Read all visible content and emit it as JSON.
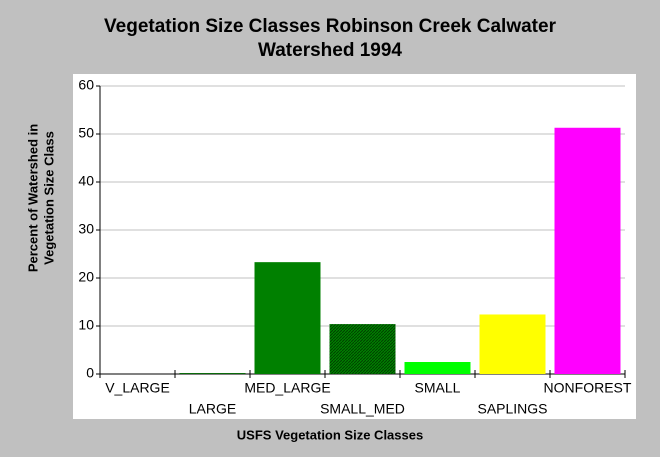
{
  "chart_data": {
    "type": "bar",
    "title": [
      "Vegetation Size Classes Robinson Creek Calwater",
      "Watershed 1994"
    ],
    "x_label": "USFS Vegetation Size Classes",
    "y_label": [
      "Percent of Watershed in",
      "Vegetation Size Class"
    ],
    "categories": [
      "V_LARGE",
      "LARGE",
      "MED_LARGE",
      "SMALL_MED",
      "SMALL",
      "SAPLINGS",
      "NONFOREST"
    ],
    "values": [
      0,
      0.2,
      23.3,
      10.4,
      2.5,
      12.4,
      51.3
    ],
    "colors": [
      "#006400",
      "#006400",
      "#008000",
      "#008000",
      "#00ff00",
      "#ffff00",
      "#ff00ff"
    ],
    "hatched": [
      false,
      false,
      false,
      true,
      false,
      false,
      false
    ],
    "ylim": [
      0,
      60
    ],
    "yticks": [
      0,
      10,
      20,
      30,
      40,
      50,
      60
    ],
    "grid": true
  }
}
